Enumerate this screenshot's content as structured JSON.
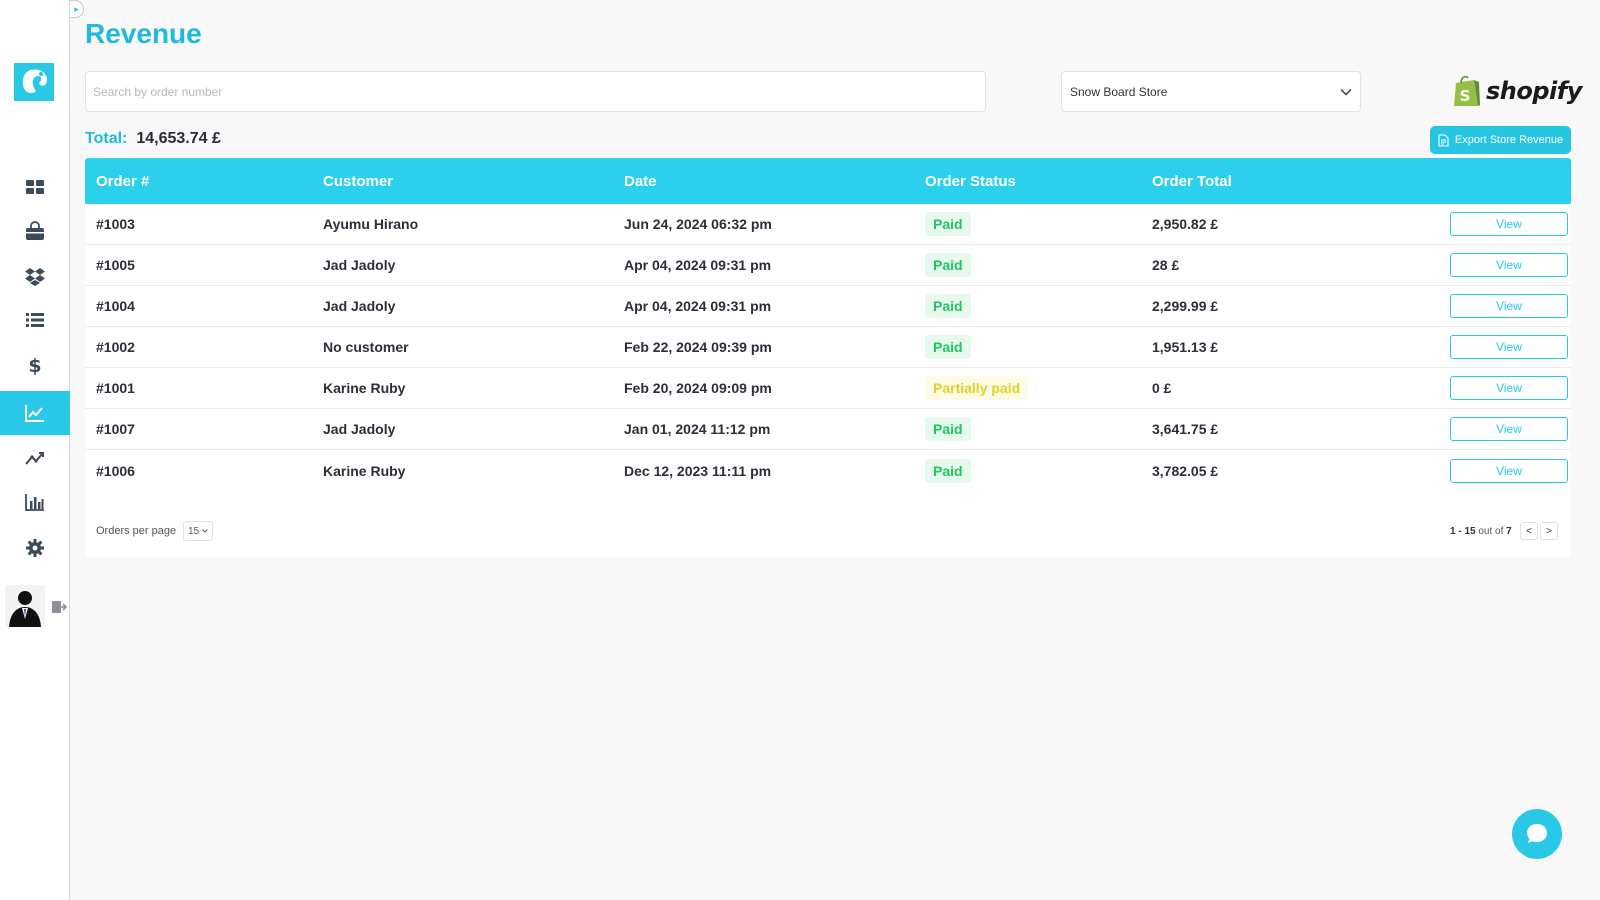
{
  "page": {
    "title": "Revenue"
  },
  "search": {
    "placeholder": "Search by order number"
  },
  "store_select": {
    "value": "Snow Board Store"
  },
  "brand": {
    "name": "shopify"
  },
  "total": {
    "label": "Total:",
    "value": "14,653.74 £"
  },
  "export": {
    "label": "Export Store Revenue"
  },
  "table": {
    "columns": [
      "Order #",
      "Customer",
      "Date",
      "Order Status",
      "Order Total"
    ],
    "rows": [
      {
        "order": "#1003",
        "customer": "Ayumu Hirano",
        "date": "Jun 24, 2024 06:32 pm",
        "status": "Paid",
        "total": "2,950.82 £",
        "action": "View"
      },
      {
        "order": "#1005",
        "customer": "Jad Jadoly",
        "date": "Apr 04, 2024 09:31 pm",
        "status": "Paid",
        "total": "28 £",
        "action": "View"
      },
      {
        "order": "#1004",
        "customer": "Jad Jadoly",
        "date": "Apr 04, 2024 09:31 pm",
        "status": "Paid",
        "total": "2,299.99 £",
        "action": "View"
      },
      {
        "order": "#1002",
        "customer": "No customer",
        "date": "Feb 22, 2024 09:39 pm",
        "status": "Paid",
        "total": "1,951.13 £",
        "action": "View"
      },
      {
        "order": "#1001",
        "customer": "Karine Ruby",
        "date": "Feb 20, 2024 09:09 pm",
        "status": "Partially paid",
        "total": "0 £",
        "action": "View"
      },
      {
        "order": "#1007",
        "customer": "Jad Jadoly",
        "date": "Jan 01, 2024 11:12 pm",
        "status": "Paid",
        "total": "3,641.75 £",
        "action": "View"
      },
      {
        "order": "#1006",
        "customer": "Karine Ruby",
        "date": "Dec 12, 2023 11:11 pm",
        "status": "Paid",
        "total": "3,782.05 £",
        "action": "View"
      }
    ]
  },
  "pagination": {
    "per_page_label": "Orders per page",
    "per_page_value": "15",
    "range": "1 - 15",
    "out_of_text": "out of",
    "total": "7",
    "prev": "<",
    "next": ">"
  },
  "sidebar": {
    "items": [
      {
        "icon": "dashboard-icon"
      },
      {
        "icon": "shopping-bag-icon"
      },
      {
        "icon": "dropbox-icon"
      },
      {
        "icon": "list-icon"
      },
      {
        "icon": "dollar-icon"
      },
      {
        "icon": "revenue-chart-icon",
        "active": true
      },
      {
        "icon": "trend-icon"
      },
      {
        "icon": "bar-chart-icon"
      },
      {
        "icon": "gear-icon"
      }
    ]
  },
  "colors": {
    "accent": "#29c8e7",
    "title": "#1eb9dc",
    "paid_text": "#22c45e",
    "paid_bg": "#e7f8ed",
    "partial_text": "#dcd22a",
    "partial_bg": "#fdfbe3"
  }
}
